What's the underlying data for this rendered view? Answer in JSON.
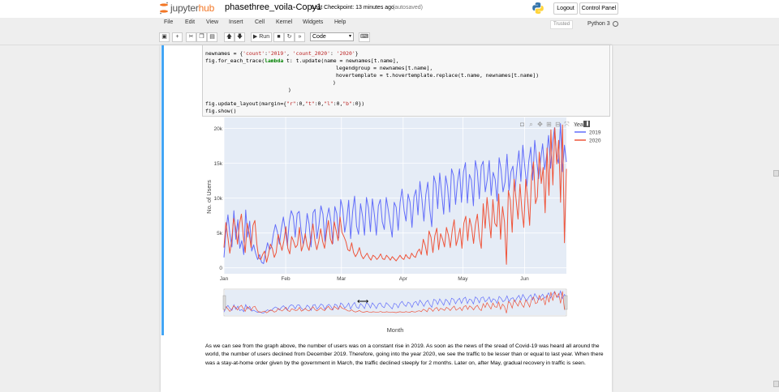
{
  "header": {
    "logo_prefix": "jupyter",
    "logo_suffix": "hub",
    "notebook_name": "phasethree_voila-Copy1",
    "checkpoint": "Last Checkpoint: 13 minutes ago",
    "autosaved": "(autosaved)",
    "logout_label": "Logout",
    "control_panel_label": "Control Panel"
  },
  "menu": {
    "items": [
      "File",
      "Edit",
      "View",
      "Insert",
      "Cell",
      "Kernel",
      "Widgets",
      "Help"
    ],
    "trusted_label": "Trusted",
    "kernel_name": "Python 3"
  },
  "toolbar": {
    "run_label": "Run",
    "cell_type": "Code",
    "icons": [
      "save-icon",
      "plus-icon",
      "cut-icon",
      "copy-icon",
      "paste-icon",
      "arrow-up-icon",
      "arrow-down-icon",
      "run-icon",
      "stop-icon",
      "restart-icon",
      "fast-forward-icon",
      "keyboard-icon"
    ]
  },
  "code": {
    "l1a": "newnames = {",
    "l1b": "'count'",
    "l1c": ":",
    "l1d": "'2019'",
    "l1e": ", ",
    "l1f": "'count_2020'",
    "l1g": ": ",
    "l1h": "'2020'",
    "l1i": "}",
    "l2a": "fig.for_each_trace(",
    "l2b": "lambda",
    "l2c": " t: t.update(name = newnames[t.name],",
    "l3": "legendgroup = newnames[t.name],",
    "l4": "hovertemplate = t.hovertemplate.replace(t.name, newnames[t.name])",
    "l5": ")",
    "l6": ")",
    "l7a": "fig.update_layout(margin={",
    "l7b": "\"r\"",
    "l7c": ":0,",
    "l7d": "\"t\"",
    "l7e": ":0,",
    "l7f": "\"l\"",
    "l7g": ":0,",
    "l7h": "\"b\"",
    "l7i": ":0})",
    "l8": "fig.show()"
  },
  "modebar_icons": [
    "camera-icon",
    "zoom-icon",
    "pan-icon",
    "zoom-in-icon",
    "zoom-out-icon",
    "autoscale-icon",
    "reset-axes-icon",
    "plotly-logo-icon"
  ],
  "chart_data": {
    "type": "line",
    "xlabel": "Month",
    "ylabel": "No. of Users",
    "legend_title": "Year",
    "legend_placement": "top-right",
    "x_tick_labels": [
      "Jan",
      "Feb",
      "Mar",
      "Apr",
      "May",
      "Jun"
    ],
    "y_tick_labels": [
      "0",
      "5k",
      "10k",
      "15k",
      "20k"
    ],
    "y_ticks": [
      0,
      5000,
      10000,
      15000,
      20000
    ],
    "ylim": [
      -500,
      21000
    ],
    "x_range_days": [
      0,
      172
    ],
    "grid": true,
    "range_slider": true,
    "series": [
      {
        "name": "2019",
        "color": "#636efa",
        "values": [
          1500,
          5200,
          7600,
          4800,
          3000,
          8200,
          4100,
          6900,
          2800,
          3900,
          1900,
          8300,
          4400,
          6700,
          2400,
          3300,
          2100,
          1200,
          1900,
          800,
          600,
          2200,
          3600,
          2600,
          3000,
          4900,
          6200,
          5100,
          3400,
          5600,
          7300,
          5400,
          3200,
          6600,
          8200,
          7400,
          4400,
          7800,
          8100,
          5300,
          3400,
          4400,
          7800,
          6300,
          3000,
          7900,
          8400,
          4200,
          6200,
          8900,
          7700,
          3800,
          7100,
          8600,
          6700,
          3500,
          8800,
          7800,
          4300,
          9800,
          8400,
          5100,
          6800,
          9700,
          4200,
          8100,
          10300,
          6000,
          4800,
          9200,
          7400,
          4700,
          10100,
          8600,
          5200,
          9900,
          7600,
          4700,
          8900,
          9800,
          6600,
          5500,
          10100,
          8300,
          6300,
          4400,
          9400,
          8700,
          5400,
          9400,
          11300,
          8200,
          6700,
          10600,
          9400,
          5800,
          10200,
          11200,
          7600,
          12400,
          9900,
          6700,
          10500,
          12300,
          8300,
          5900,
          13200,
          12100,
          8500,
          13600,
          10700,
          7700,
          13200,
          11600,
          8000,
          14200,
          13200,
          9100,
          12300,
          14200,
          9400,
          13800,
          15100,
          9300,
          13400,
          12600,
          8900,
          15400,
          13900,
          9900,
          14600,
          15300,
          10900,
          12600,
          15400,
          10400,
          13700,
          12700,
          9600,
          15800,
          14100,
          10900,
          12300,
          16300,
          11100,
          13800,
          14600,
          11000,
          14300,
          16800,
          12400,
          17600,
          14400,
          11700,
          15300,
          17300,
          12600,
          18300,
          15400,
          12800,
          15500,
          17800,
          14100,
          16100,
          19000,
          14300,
          17900,
          20100,
          16100,
          15000,
          20700,
          13800,
          17600,
          15200
        ]
      },
      {
        "name": "2020",
        "color": "#ef553b",
        "values": [
          2900,
          6500,
          4400,
          2100,
          3900,
          7100,
          5800,
          3400,
          6300,
          7700,
          4600,
          2200,
          6400,
          5000,
          2900,
          6100,
          6800,
          3400,
          1400,
          1200,
          1900,
          2400,
          800,
          1900,
          3400,
          2800,
          1500,
          2200,
          4800,
          3600,
          2500,
          3900,
          5900,
          2800,
          2000,
          4500,
          3800,
          2900,
          3300,
          5800,
          2400,
          3300,
          4900,
          3200,
          2500,
          4500,
          6300,
          3900,
          2600,
          3800,
          5600,
          3800,
          2800,
          5100,
          6800,
          4200,
          3400,
          6600,
          5300,
          3900,
          7300,
          5100,
          4500,
          3800,
          2600,
          2400,
          3600,
          2200,
          1600,
          2100,
          2900,
          1800,
          1300,
          1700,
          2100,
          1500,
          1100,
          1800,
          1600,
          1200,
          1500,
          2000,
          1300,
          1200,
          1800,
          1500,
          1100,
          1600,
          1300,
          1000,
          1400,
          1800,
          1400,
          1200,
          1900,
          1500,
          1300,
          2100,
          1700,
          1500,
          2300,
          2700,
          1900,
          4100,
          3200,
          1800,
          5300,
          4400,
          2200,
          4600,
          5700,
          2600,
          4900,
          4100,
          3000,
          5800,
          4700,
          2900,
          5300,
          6900,
          3200,
          4300,
          5700,
          2800,
          6400,
          7400,
          3900,
          7100,
          5800,
          3500,
          6200,
          7700,
          4400,
          2800,
          9200,
          5700,
          10100,
          7200,
          4300,
          9800,
          6400,
          5900,
          10600,
          4100,
          8800,
          6600,
          500,
          11100,
          9700,
          5100,
          12700,
          9800,
          7000,
          12000,
          8200,
          5800,
          12700,
          9800,
          6100,
          13200,
          15200,
          9200,
          10200,
          16600,
          12100,
          14400,
          7900,
          17200,
          10400,
          19800,
          11900,
          20100,
          14900,
          18300,
          9400,
          20500,
          3600,
          14200
        ]
      }
    ]
  },
  "markdown": {
    "paragraph": "As we can see from the graph above, the number of users was on a constant rise in 2019. As soon as the news of the sread of Covid-19 was heard all around the world, the number of users declined from December 2019. Therefore, going into the year 2020, we see the traffic to be lesser than or equal to last year. When there was a stay-at-home order given by the government in March, the traffic declined steeply for 2 months. Later on, after May, gradual recovery in traffic is seen."
  }
}
